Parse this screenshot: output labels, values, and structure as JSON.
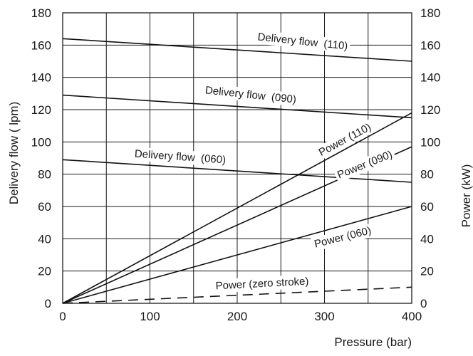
{
  "chart_data": {
    "type": "line",
    "xlabel": "Pressure (bar)",
    "ylabel_left": "Delivery flow ( lpm)",
    "ylabel_right": "Power (kW)",
    "xlim": [
      0,
      400
    ],
    "ylim_left": [
      0,
      180
    ],
    "ylim_right": [
      0,
      180
    ],
    "grid": true,
    "x_ticks": [
      "0",
      "100",
      "200",
      "300",
      "400"
    ],
    "y_ticks_left": [
      "0",
      "20",
      "40",
      "60",
      "80",
      "100",
      "120",
      "140",
      "160",
      "180"
    ],
    "y_ticks_right": [
      "0",
      "20",
      "40",
      "60",
      "80",
      "100",
      "120",
      "140",
      "160",
      "180"
    ],
    "series": [
      {
        "name": "Delivery flow  (110)",
        "axis": "left",
        "style": "solid",
        "x": [
          0,
          400
        ],
        "y": [
          164,
          150
        ]
      },
      {
        "name": "Delivery flow  (090)",
        "axis": "left",
        "style": "solid",
        "x": [
          0,
          400
        ],
        "y": [
          129,
          115
        ]
      },
      {
        "name": "Delivery flow  (060)",
        "axis": "left",
        "style": "solid",
        "x": [
          0,
          400
        ],
        "y": [
          89,
          75
        ]
      },
      {
        "name": "Power (110)",
        "axis": "right",
        "style": "solid",
        "x": [
          0,
          400
        ],
        "y": [
          0,
          118
        ]
      },
      {
        "name": "Power (090)",
        "axis": "right",
        "style": "solid",
        "x": [
          0,
          400
        ],
        "y": [
          0,
          97
        ]
      },
      {
        "name": "Power (060)",
        "axis": "right",
        "style": "solid",
        "x": [
          0,
          400
        ],
        "y": [
          0,
          60
        ]
      },
      {
        "name": "Power (zero stroke)",
        "axis": "right",
        "style": "dashed",
        "x": [
          0,
          400
        ],
        "y": [
          0,
          10
        ]
      }
    ]
  }
}
